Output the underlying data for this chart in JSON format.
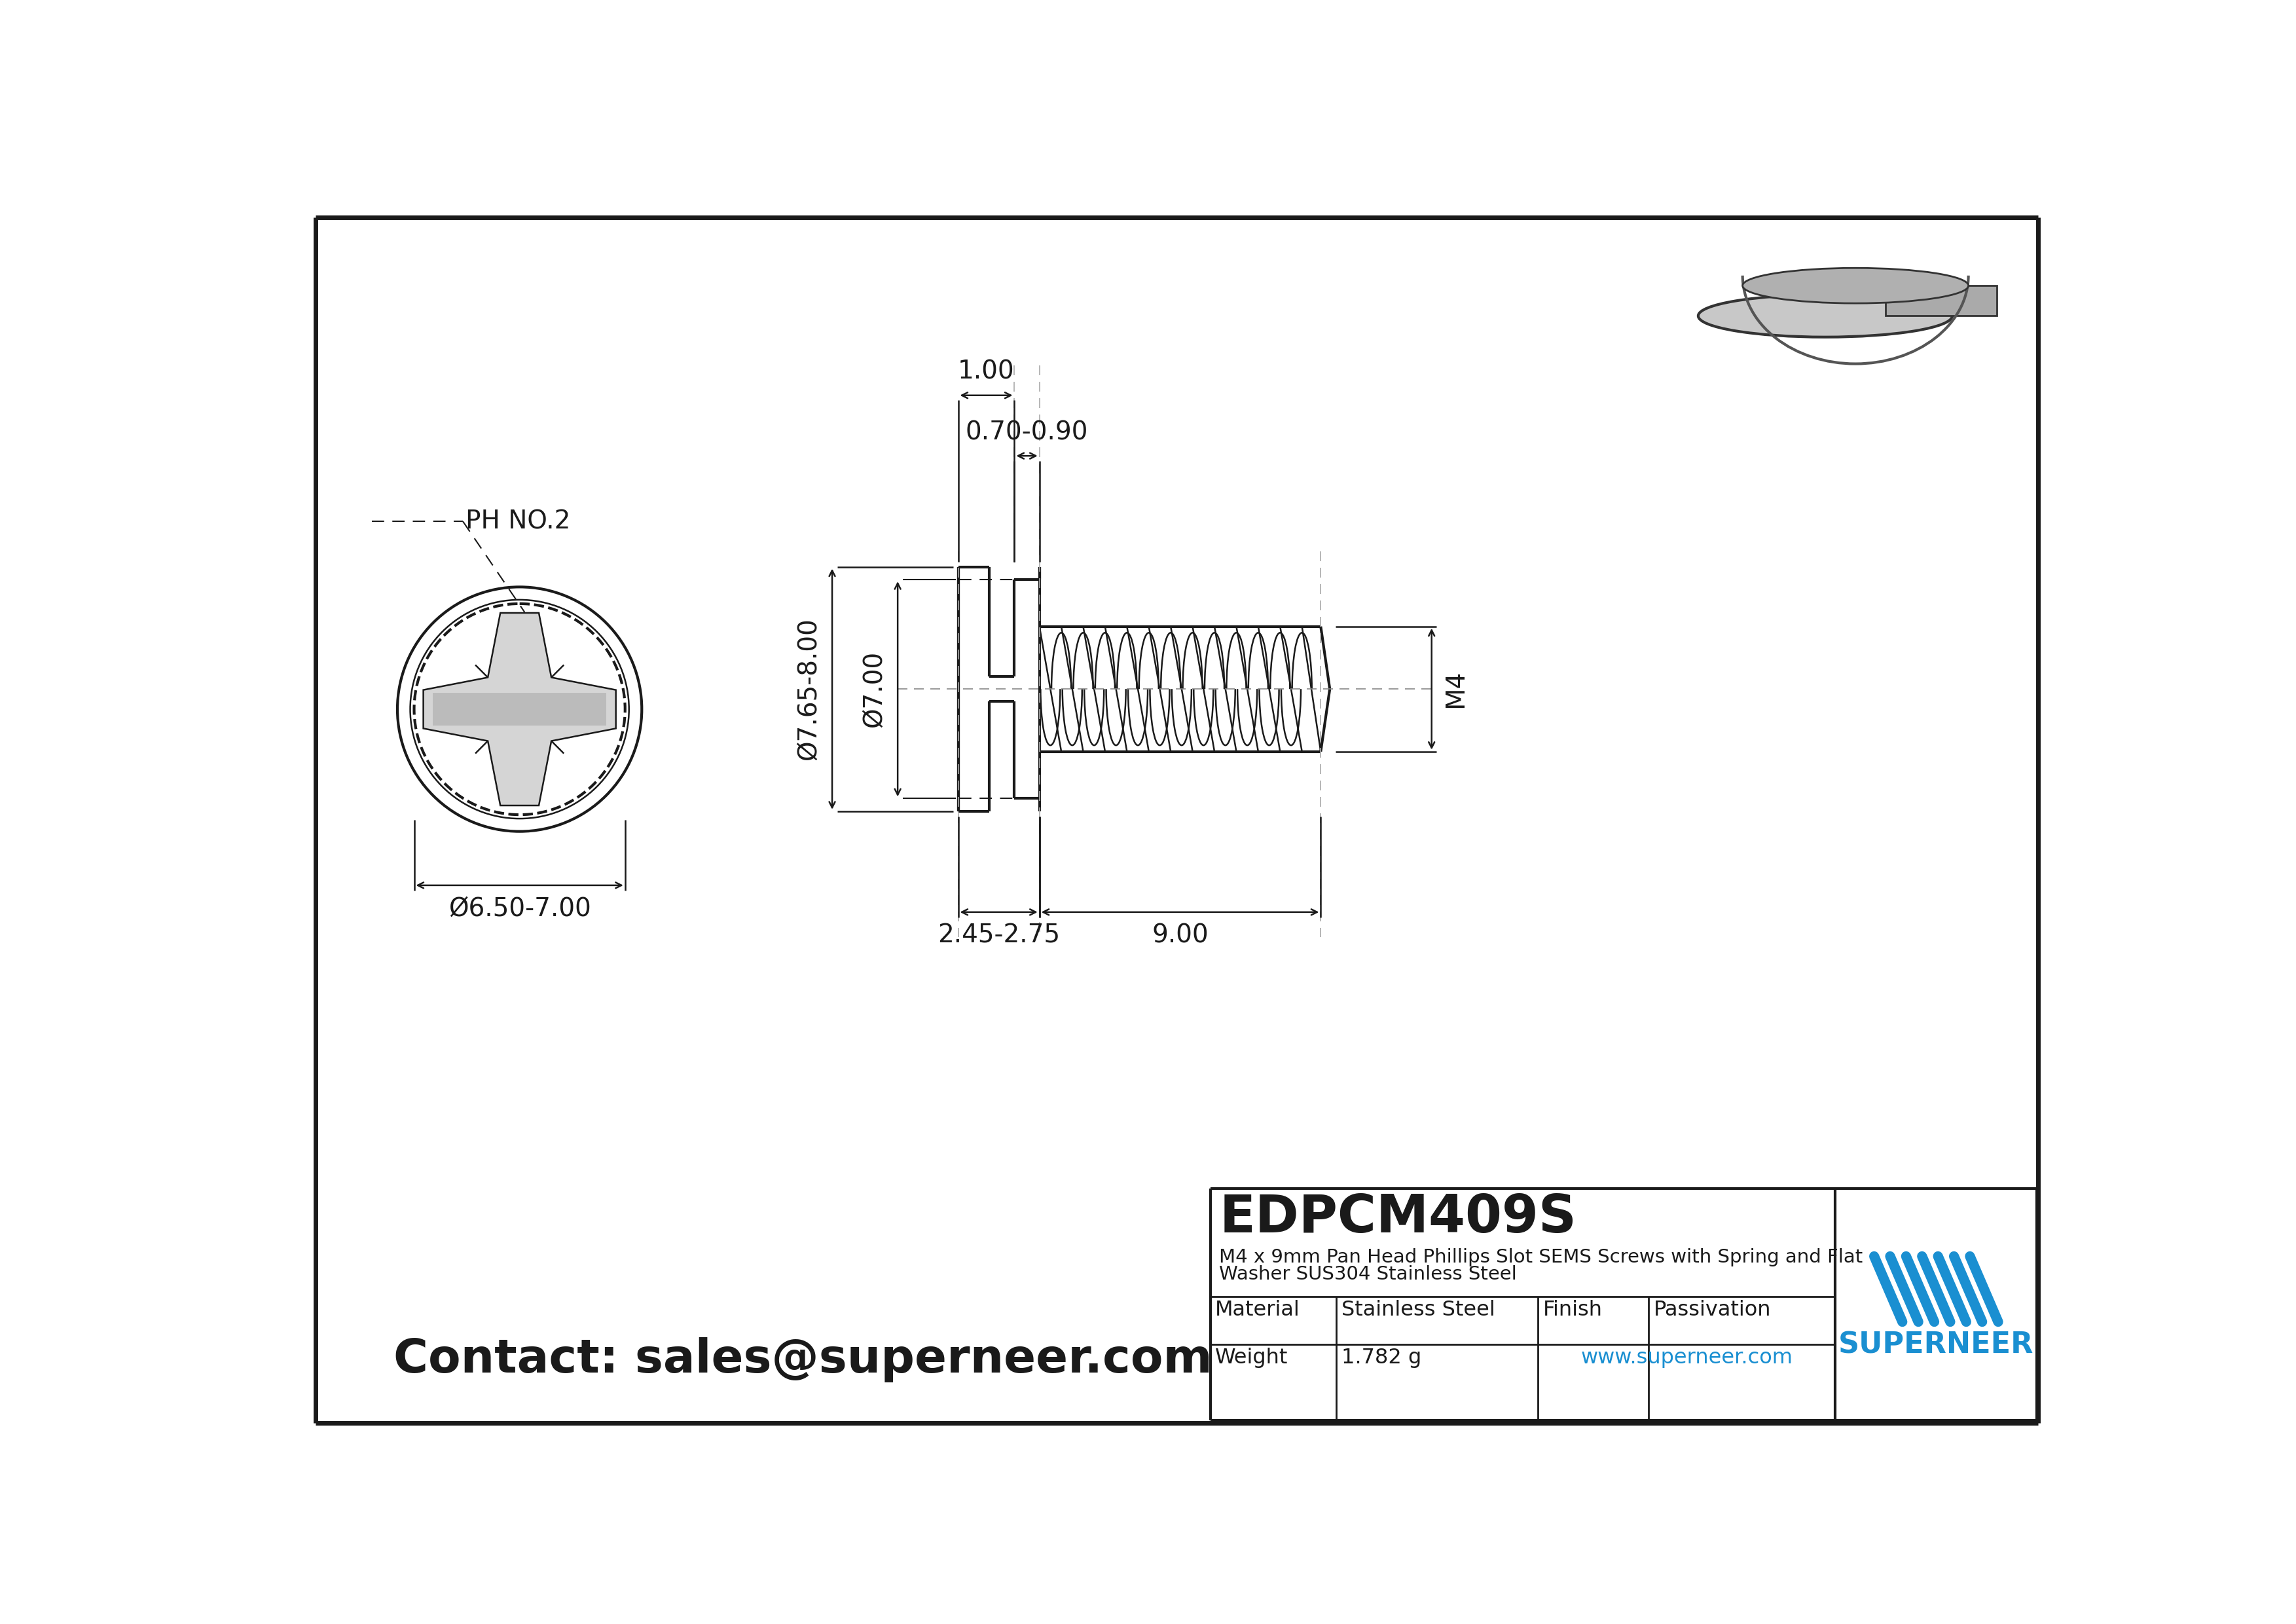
{
  "bg_color": "#ffffff",
  "line_color": "#1a1a1a",
  "blue_color": "#1a8fd1",
  "border_lw": 5,
  "title": "EDPCM409S",
  "subtitle_line1": "M4 x 9mm Pan Head Phillips Slot SEMS Screws with Spring and Flat",
  "subtitle_line2": "Washer SUS304 Stainless Steel",
  "contact": "Contact: sales@superneer.com",
  "ph_label": "PH NO.2",
  "dia_front": "Ø6.50-7.00",
  "dim_070090": "0.70-0.90",
  "dim_100": "1.00",
  "dim_765800": "Ø7.65-8.00",
  "dim_700": "Ø7.00",
  "dim_245275": "2.45-2.75",
  "dim_900": "9.00",
  "dim_M4": "M4",
  "material_label": "Material",
  "material_value": "Stainless Steel",
  "finish_label": "Finish",
  "finish_value": "Passivation",
  "weight_label": "Weight",
  "weight_value": "1.782 g",
  "website": "www.superneer.com",
  "superneer_label": "SUPERNEER",
  "scale": 62
}
